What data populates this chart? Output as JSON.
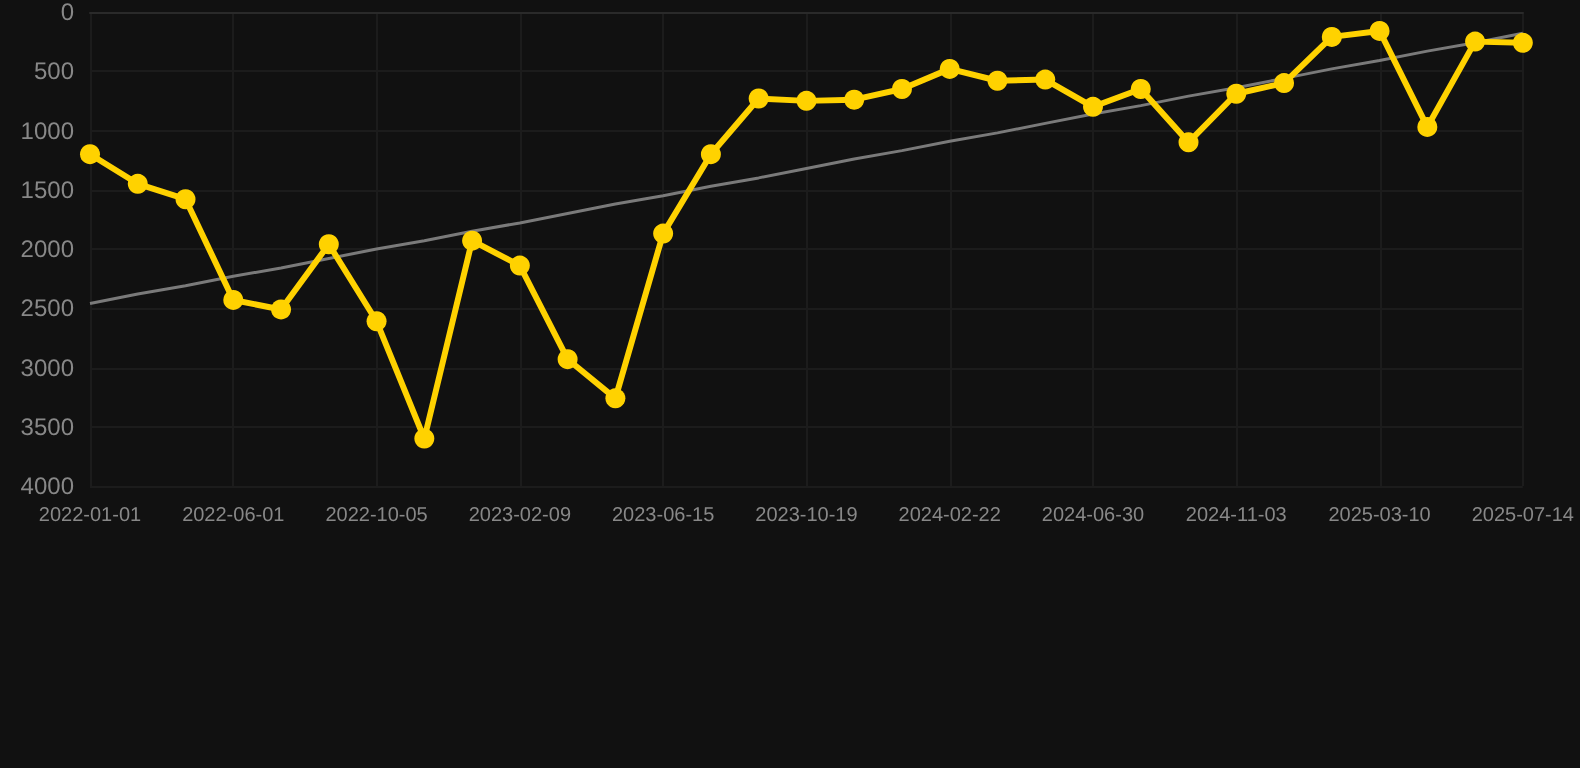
{
  "chart_data": {
    "type": "line",
    "categories": [
      "2022-01-01",
      null,
      null,
      "2022-06-01",
      null,
      null,
      "2022-10-05",
      null,
      null,
      "2023-02-09",
      null,
      null,
      "2023-06-15",
      null,
      null,
      "2023-10-19",
      null,
      null,
      "2024-02-22",
      null,
      null,
      "2024-06-30",
      null,
      null,
      "2024-11-03",
      null,
      null,
      "2025-03-10",
      null,
      null,
      "2025-07-14"
    ],
    "series": [
      {
        "color": "#ffd200",
        "marker": "circle",
        "values": [
          1200,
          1450,
          1580,
          2430,
          2510,
          1960,
          2610,
          3600,
          1930,
          2140,
          2930,
          3260,
          1870,
          1200,
          730,
          750,
          740,
          650,
          480,
          580,
          570,
          800,
          650,
          1100,
          690,
          600,
          210,
          160,
          970,
          250,
          260
        ]
      },
      {
        "type": "line",
        "color": "#7a7a7a",
        "marker": "none",
        "values": [
          2460,
          2380,
          2310,
          2230,
          2160,
          2080,
          2000,
          1930,
          1850,
          1780,
          1700,
          1620,
          1550,
          1470,
          1400,
          1320,
          1240,
          1170,
          1090,
          1020,
          940,
          860,
          790,
          710,
          640,
          560,
          480,
          410,
          330,
          260,
          180
        ]
      }
    ],
    "ylim": [
      4000,
      0
    ],
    "yticks": [
      0,
      500,
      1000,
      1500,
      2000,
      2500,
      3000,
      3500,
      4000
    ],
    "grid": true
  }
}
